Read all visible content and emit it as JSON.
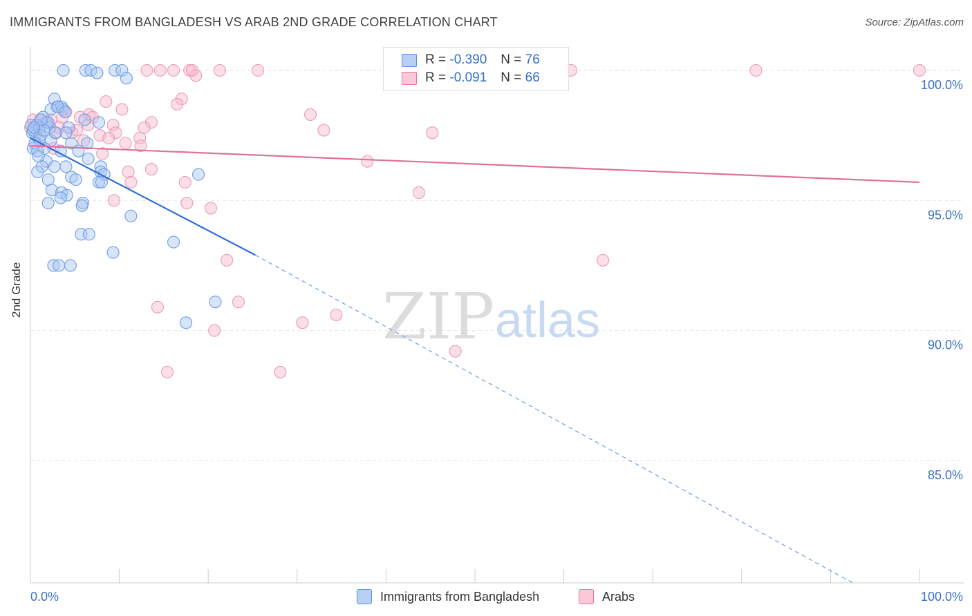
{
  "title": "IMMIGRANTS FROM BANGLADESH VS ARAB 2ND GRADE CORRELATION CHART",
  "source": "Source: ZipAtlas.com",
  "watermark": {
    "zip": "ZIP",
    "atlas": "atlas"
  },
  "legend": {
    "rows": [
      {
        "r_label": "R =",
        "r_value": "-0.390",
        "n_label": "N =",
        "n_value": "76"
      },
      {
        "r_label": "R =",
        "r_value": "-0.091",
        "n_label": "N =",
        "n_value": "66"
      }
    ]
  },
  "bottom_legend": [
    "Immigrants from Bangladesh",
    "Arabs"
  ],
  "colors": {
    "blue": "#5b8fe0",
    "blue_fill": "#a8c6f2",
    "pink": "#e8749a",
    "pink_fill": "#f6b8cb",
    "axis_text": "#3b72c8"
  },
  "chart_data": {
    "type": "scatter",
    "title": "IMMIGRANTS FROM BANGLADESH VS ARAB 2ND GRADE CORRELATION CHART",
    "xlabel": "",
    "ylabel": "2nd Grade",
    "xlim": [
      0,
      100
    ],
    "ylim": [
      80.3,
      100.9
    ],
    "x_tick_labels": [
      "0.0%",
      "100.0%"
    ],
    "y_ticks": [
      85,
      90,
      95,
      100
    ],
    "y_tick_labels": [
      "85.0%",
      "90.0%",
      "95.0%",
      "100.0%"
    ],
    "grid": true,
    "series": [
      {
        "name": "Immigrants from Bangladesh",
        "color": "#5b8fe0",
        "r": -0.39,
        "n": 76,
        "trend": {
          "x0": 0,
          "y0": 97.4,
          "x1": 25.3,
          "y1": 92.9,
          "dash_to_x": 92.5,
          "dash_to_y": 80.3
        },
        "points": [
          [
            3.7,
            100
          ],
          [
            6.2,
            100
          ],
          [
            6.8,
            100
          ],
          [
            7.5,
            99.9
          ],
          [
            9.5,
            100
          ],
          [
            10.3,
            100
          ],
          [
            10.8,
            99.7
          ],
          [
            2.7,
            98.9
          ],
          [
            3.0,
            98.6
          ],
          [
            3.5,
            98.6
          ],
          [
            2.3,
            98.5
          ],
          [
            3.7,
            98.5
          ],
          [
            1.4,
            98.2
          ],
          [
            1.8,
            98.0
          ],
          [
            6.1,
            98.1
          ],
          [
            7.7,
            98.0
          ],
          [
            0.1,
            97.9
          ],
          [
            0.7,
            97.9
          ],
          [
            1.0,
            97.8
          ],
          [
            2.2,
            97.8
          ],
          [
            4.3,
            97.8
          ],
          [
            0.2,
            97.6
          ],
          [
            0.6,
            97.5
          ],
          [
            4.0,
            97.6
          ],
          [
            1.0,
            97.3
          ],
          [
            2.3,
            97.3
          ],
          [
            4.6,
            97.2
          ],
          [
            6.4,
            97.2
          ],
          [
            0.3,
            97.0
          ],
          [
            1.6,
            97.0
          ],
          [
            0.8,
            96.9
          ],
          [
            3.4,
            96.9
          ],
          [
            5.4,
            96.9
          ],
          [
            6.5,
            96.6
          ],
          [
            1.8,
            96.5
          ],
          [
            2.7,
            96.3
          ],
          [
            1.3,
            96.3
          ],
          [
            4.0,
            96.3
          ],
          [
            0.8,
            96.1
          ],
          [
            7.9,
            96.3
          ],
          [
            7.9,
            96.1
          ],
          [
            8.3,
            96.0
          ],
          [
            18.9,
            96.0
          ],
          [
            4.6,
            95.9
          ],
          [
            5.1,
            95.8
          ],
          [
            2.0,
            95.8
          ],
          [
            7.7,
            95.7
          ],
          [
            8.0,
            95.7
          ],
          [
            2.4,
            95.4
          ],
          [
            3.5,
            95.3
          ],
          [
            4.1,
            95.2
          ],
          [
            3.4,
            95.1
          ],
          [
            2.0,
            94.9
          ],
          [
            5.9,
            94.9
          ],
          [
            5.8,
            94.8
          ],
          [
            11.3,
            94.4
          ],
          [
            5.7,
            93.7
          ],
          [
            6.6,
            93.7
          ],
          [
            16.1,
            93.4
          ],
          [
            9.3,
            93.0
          ],
          [
            2.6,
            92.5
          ],
          [
            3.2,
            92.5
          ],
          [
            4.5,
            92.5
          ],
          [
            20.8,
            91.1
          ],
          [
            17.5,
            90.3
          ],
          [
            0.3,
            97.7
          ],
          [
            1.1,
            97.5
          ],
          [
            2.0,
            98.0
          ],
          [
            3.1,
            98.6
          ],
          [
            0.5,
            97.2
          ],
          [
            1.5,
            97.7
          ],
          [
            2.8,
            97.6
          ],
          [
            0.9,
            96.7
          ],
          [
            3.9,
            98.4
          ],
          [
            1.2,
            98.1
          ],
          [
            0.4,
            97.8
          ]
        ]
      },
      {
        "name": "Arabs",
        "color": "#e8749a",
        "r": -0.091,
        "n": 66,
        "trend": {
          "x0": 0,
          "y0": 97.1,
          "x1": 100,
          "y1": 95.7
        },
        "points": [
          [
            13.1,
            100
          ],
          [
            14.6,
            100
          ],
          [
            16.1,
            100
          ],
          [
            17.9,
            100
          ],
          [
            18.6,
            99.8
          ],
          [
            18.2,
            100
          ],
          [
            21.3,
            100
          ],
          [
            25.6,
            100
          ],
          [
            47.4,
            100
          ],
          [
            60.8,
            100
          ],
          [
            81.6,
            100
          ],
          [
            100,
            100
          ],
          [
            17.0,
            98.9
          ],
          [
            16.5,
            98.7
          ],
          [
            8.5,
            98.8
          ],
          [
            10.3,
            98.5
          ],
          [
            6.6,
            98.3
          ],
          [
            7.0,
            98.2
          ],
          [
            4.0,
            98.4
          ],
          [
            5.6,
            98.2
          ],
          [
            31.5,
            98.3
          ],
          [
            0.3,
            98.1
          ],
          [
            1.1,
            98.1
          ],
          [
            2.3,
            98.1
          ],
          [
            3.2,
            97.8
          ],
          [
            6.5,
            97.9
          ],
          [
            13.6,
            98.0
          ],
          [
            9.3,
            97.9
          ],
          [
            12.8,
            97.8
          ],
          [
            33.0,
            97.7
          ],
          [
            45.2,
            97.6
          ],
          [
            0.0,
            97.8
          ],
          [
            2.9,
            97.6
          ],
          [
            4.7,
            97.6
          ],
          [
            7.8,
            97.5
          ],
          [
            9.6,
            97.6
          ],
          [
            8.8,
            97.4
          ],
          [
            12.3,
            97.4
          ],
          [
            10.7,
            97.2
          ],
          [
            12.4,
            97.1
          ],
          [
            2.6,
            97.0
          ],
          [
            8.1,
            96.8
          ],
          [
            37.9,
            96.5
          ],
          [
            11.0,
            96.1
          ],
          [
            13.6,
            96.2
          ],
          [
            11.3,
            95.7
          ],
          [
            17.4,
            95.7
          ],
          [
            43.7,
            95.3
          ],
          [
            9.4,
            95.0
          ],
          [
            17.6,
            94.9
          ],
          [
            20.3,
            94.7
          ],
          [
            22.1,
            92.7
          ],
          [
            64.4,
            92.7
          ],
          [
            14.3,
            90.9
          ],
          [
            23.4,
            91.1
          ],
          [
            34.4,
            90.6
          ],
          [
            30.6,
            90.3
          ],
          [
            20.7,
            90.0
          ],
          [
            47.8,
            89.2
          ],
          [
            15.4,
            88.4
          ],
          [
            28.1,
            88.4
          ],
          [
            1.7,
            98.0
          ],
          [
            0.8,
            97.6
          ],
          [
            5.2,
            97.7
          ],
          [
            3.6,
            98.2
          ],
          [
            6.0,
            97.3
          ]
        ]
      }
    ]
  }
}
